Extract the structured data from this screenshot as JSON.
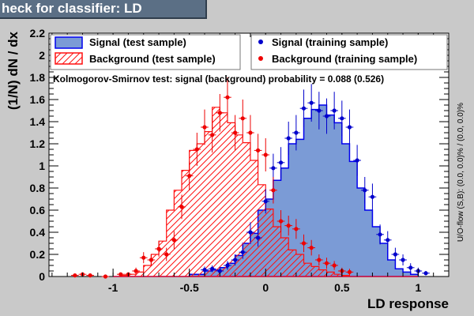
{
  "title": "heck for classifier: LD",
  "chart_data": {
    "type": "histogram",
    "xlabel": "LD response",
    "ylabel": "(1/N) dN / dx",
    "side_label": "U/O-flow (S,B): (0.0, 0.0)% / (0.0, 0.0)%",
    "annotation": "Kolmogorov-Smirnov test: signal (background) probability = 0.088 (0.526)",
    "xlim": [
      -1.42,
      1.2
    ],
    "ylim": [
      0,
      2.2
    ],
    "xticks": [
      -1,
      -0.5,
      0,
      0.5,
      1
    ],
    "xtick_labels": [
      "-1",
      "-0.5",
      "0",
      "0.5",
      "1"
    ],
    "yticks": [
      0,
      0.2,
      0.4,
      0.6,
      0.8,
      1,
      1.2,
      1.4,
      1.6,
      1.8,
      2,
      2.2
    ],
    "ytick_labels": [
      "0",
      "0.2",
      "0.4",
      "0.6",
      "0.8",
      "1",
      "1.2",
      "1.4",
      "1.6",
      "1.8",
      "2",
      "2.2"
    ],
    "bin_edges": [
      -1.0,
      -0.95,
      -0.9,
      -0.85,
      -0.8,
      -0.75,
      -0.7,
      -0.65,
      -0.6,
      -0.55,
      -0.5,
      -0.45,
      -0.4,
      -0.35,
      -0.3,
      -0.25,
      -0.2,
      -0.15,
      -0.1,
      -0.05,
      0.0,
      0.05,
      0.1,
      0.15,
      0.2,
      0.25,
      0.3,
      0.35,
      0.4,
      0.45,
      0.5,
      0.55,
      0.6,
      0.65,
      0.7,
      0.75,
      0.8,
      0.85,
      0.9,
      0.95,
      1.0
    ],
    "legend": {
      "signal_test": "Signal (test sample)",
      "background_test": "Background (test sample)",
      "signal_train": "Signal (training sample)",
      "background_train": "Background (training sample)"
    },
    "colors": {
      "signal_fill": "#7b9bd6",
      "signal_line": "#0000ee",
      "background": "#ff1010",
      "signal_marker": "#0000cc",
      "background_marker": "#ee0000"
    },
    "series": [
      {
        "name": "Signal (test sample)",
        "style": "filled-histogram",
        "values": [
          0.0,
          0.0,
          0.0,
          0.0,
          0.0,
          0.0,
          0.0,
          0.0,
          0.0,
          0.0,
          0.02,
          0.02,
          0.05,
          0.06,
          0.08,
          0.12,
          0.19,
          0.3,
          0.39,
          0.6,
          0.7,
          0.87,
          0.98,
          1.2,
          1.24,
          1.43,
          1.51,
          1.55,
          1.46,
          1.39,
          1.2,
          1.04,
          0.8,
          0.6,
          0.45,
          0.3,
          0.15,
          0.07,
          0.04,
          0.02
        ]
      },
      {
        "name": "Background (test sample)",
        "style": "hatched-histogram",
        "values": [
          0.0,
          0.01,
          0.02,
          0.04,
          0.1,
          0.2,
          0.32,
          0.6,
          0.78,
          0.96,
          1.14,
          1.2,
          1.31,
          1.53,
          1.48,
          1.39,
          1.28,
          1.21,
          1.05,
          0.83,
          0.61,
          0.45,
          0.35,
          0.24,
          0.2,
          0.12,
          0.09,
          0.06,
          0.04,
          0.02,
          0.01,
          0.0,
          0.0,
          0.0,
          0.0,
          0.0,
          0.0,
          0.0,
          0.0,
          0.0
        ]
      },
      {
        "name": "Signal (training sample)",
        "style": "points",
        "x": [
          -0.4,
          -0.35,
          -0.3,
          -0.25,
          -0.2,
          -0.15,
          -0.1,
          -0.05,
          0.0,
          0.05,
          0.1,
          0.15,
          0.2,
          0.25,
          0.3,
          0.35,
          0.4,
          0.45,
          0.5,
          0.55,
          0.6,
          0.65,
          0.7,
          0.75,
          0.8,
          0.85,
          0.9,
          0.95,
          1.0,
          1.05
        ],
        "y": [
          0.06,
          0.07,
          0.05,
          0.1,
          0.15,
          0.22,
          0.4,
          0.35,
          0.68,
          0.98,
          1.03,
          1.25,
          1.3,
          1.52,
          1.57,
          1.5,
          1.45,
          1.5,
          1.43,
          1.35,
          1.05,
          0.78,
          0.72,
          0.38,
          0.33,
          0.2,
          0.15,
          0.08,
          0.05,
          0.03
        ],
        "err": [
          0.03,
          0.03,
          0.03,
          0.04,
          0.05,
          0.06,
          0.09,
          0.08,
          0.11,
          0.13,
          0.14,
          0.15,
          0.16,
          0.17,
          0.17,
          0.17,
          0.16,
          0.17,
          0.16,
          0.16,
          0.14,
          0.12,
          0.12,
          0.09,
          0.08,
          0.06,
          0.05,
          0.04,
          0.03,
          0.02
        ]
      },
      {
        "name": "Background (training sample)",
        "style": "points",
        "x": [
          -1.25,
          -1.2,
          -1.15,
          -1.05,
          -0.95,
          -0.9,
          -0.85,
          -0.8,
          -0.75,
          -0.7,
          -0.65,
          -0.6,
          -0.55,
          -0.5,
          -0.45,
          -0.4,
          -0.35,
          -0.3,
          -0.25,
          -0.2,
          -0.15,
          -0.1,
          -0.05,
          0.0,
          0.05,
          0.1,
          0.15,
          0.2,
          0.25,
          0.3,
          0.35,
          0.4,
          0.45,
          0.5,
          0.55
        ],
        "y": [
          0.01,
          0.02,
          0.01,
          0.0,
          0.02,
          0.02,
          0.05,
          0.17,
          0.15,
          0.25,
          0.2,
          0.33,
          0.63,
          0.91,
          1.15,
          1.35,
          1.28,
          1.48,
          1.62,
          1.3,
          1.43,
          1.3,
          1.14,
          1.1,
          0.78,
          0.5,
          0.46,
          0.43,
          0.3,
          0.26,
          0.15,
          0.12,
          0.1,
          0.05,
          0.04
        ],
        "err": [
          0.01,
          0.01,
          0.01,
          0.01,
          0.01,
          0.01,
          0.03,
          0.05,
          0.05,
          0.07,
          0.06,
          0.08,
          0.11,
          0.13,
          0.15,
          0.16,
          0.16,
          0.17,
          0.18,
          0.16,
          0.17,
          0.16,
          0.15,
          0.15,
          0.12,
          0.1,
          0.09,
          0.09,
          0.08,
          0.07,
          0.05,
          0.05,
          0.04,
          0.03,
          0.03
        ]
      }
    ]
  }
}
